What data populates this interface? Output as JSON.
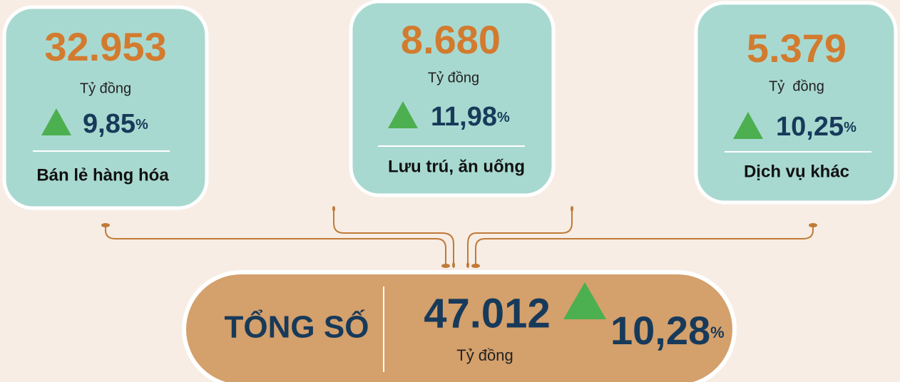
{
  "cards": [
    {
      "value": "32.953",
      "unit": "Tỷ đồng",
      "change": "9,85",
      "percent": "%",
      "label": "Bán lẻ hàng hóa"
    },
    {
      "value": "8.680",
      "unit": "Tỷ đồng",
      "change": "11,98",
      "percent": "%",
      "label": "Lưu trú, ăn uống"
    },
    {
      "value": "5.379",
      "unit": "Tỷ  đồng",
      "change": "10,25",
      "percent": "%",
      "label": "Dịch vụ khác"
    }
  ],
  "total": {
    "title": "TỔNG SỐ",
    "value": "47.012",
    "unit": "Tỷ đồng",
    "change": "10,28",
    "percent": "%"
  }
}
